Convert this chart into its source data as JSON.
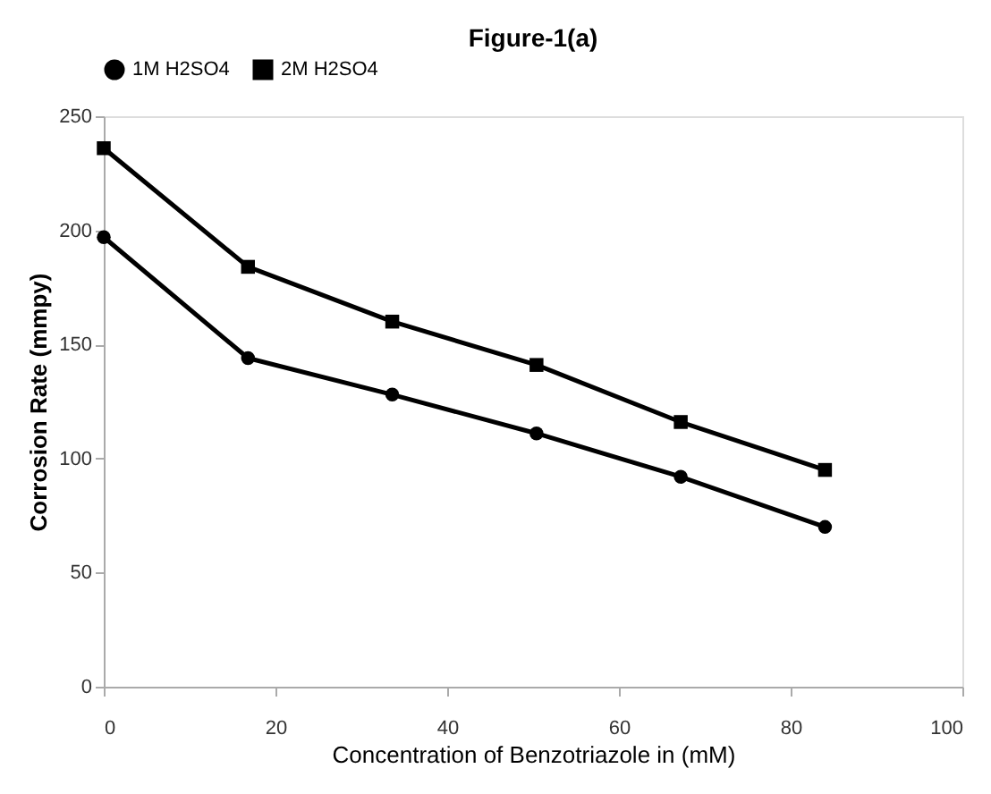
{
  "chart_data": {
    "type": "line",
    "title": "Figure-1(a)",
    "xlabel": "Concentration of Benzotriazole in (mM)",
    "ylabel": "Corrosion Rate (mmpy)",
    "x": [
      0,
      16.8,
      33.6,
      50.4,
      67.2,
      84
    ],
    "series": [
      {
        "name": "1M H2SO4",
        "color": "#000000",
        "marker": "circle",
        "values": [
          197,
          144,
          128,
          111,
          92,
          70
        ]
      },
      {
        "name": "2M H2SO4",
        "color": "#000000",
        "marker": "square",
        "values": [
          236,
          184,
          160,
          141,
          116,
          95
        ]
      }
    ],
    "xlim": [
      0,
      100
    ],
    "xticks": [
      0,
      20,
      40,
      60,
      80,
      100
    ],
    "ylim": [
      0,
      250
    ],
    "yticks": [
      0,
      50,
      100,
      150,
      200,
      250
    ],
    "grid": false,
    "legend": "top",
    "line_style": "solid"
  }
}
